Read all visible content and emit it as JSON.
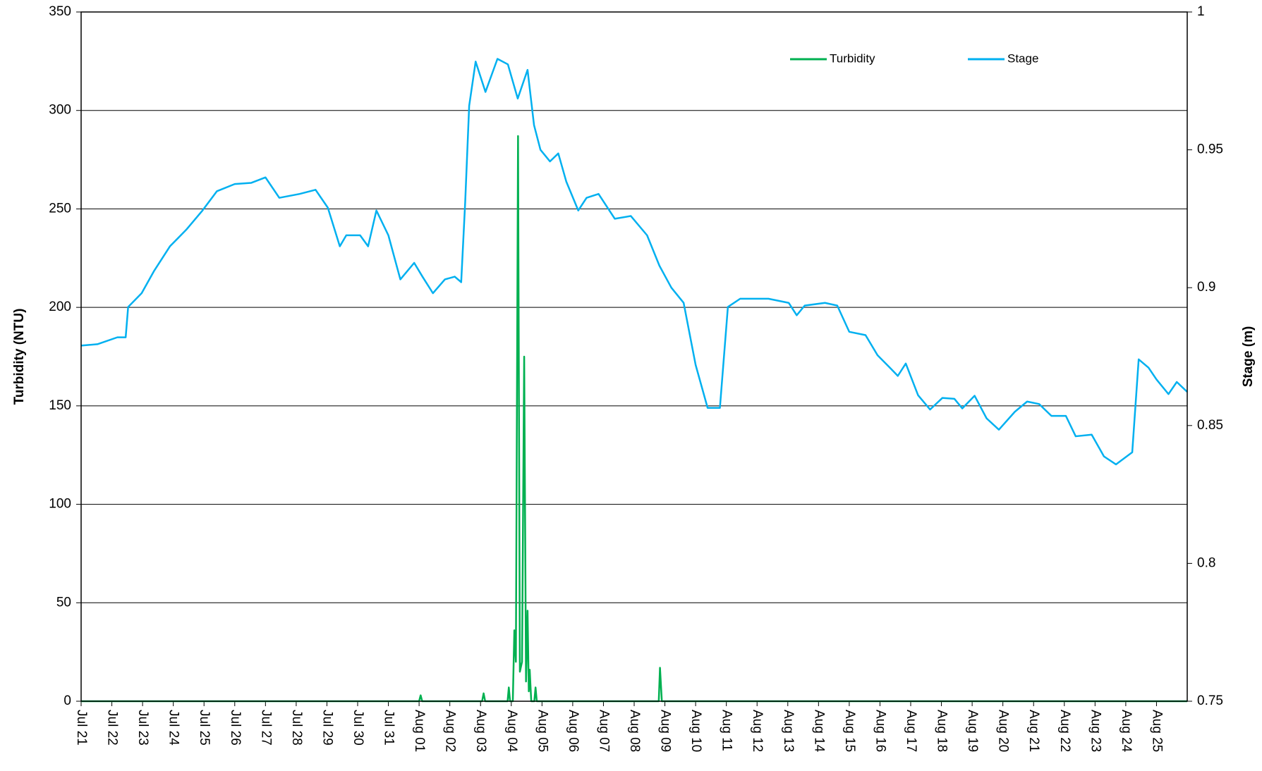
{
  "chart_data": {
    "type": "line",
    "y_label": "Turbidity (NTU)",
    "y2_label": "Stage (m)",
    "xlim": [
      0,
      36
    ],
    "xticks": [
      {
        "value": 0,
        "label": "Jul 21"
      },
      {
        "value": 1,
        "label": "Jul 22"
      },
      {
        "value": 2,
        "label": "Jul 23"
      },
      {
        "value": 3,
        "label": "Jul 24"
      },
      {
        "value": 4,
        "label": "Jul 25"
      },
      {
        "value": 5,
        "label": "Jul 26"
      },
      {
        "value": 6,
        "label": "Jul 27"
      },
      {
        "value": 7,
        "label": "Jul 28"
      },
      {
        "value": 8,
        "label": "Jul 29"
      },
      {
        "value": 9,
        "label": "Jul 30"
      },
      {
        "value": 10,
        "label": "Jul 31"
      },
      {
        "value": 11,
        "label": "Aug 01"
      },
      {
        "value": 12,
        "label": "Aug 02"
      },
      {
        "value": 13,
        "label": "Aug 03"
      },
      {
        "value": 14,
        "label": "Aug 04"
      },
      {
        "value": 15,
        "label": "Aug 05"
      },
      {
        "value": 16,
        "label": "Aug 06"
      },
      {
        "value": 17,
        "label": "Aug 07"
      },
      {
        "value": 18,
        "label": "Aug 08"
      },
      {
        "value": 19,
        "label": "Aug 09"
      },
      {
        "value": 20,
        "label": "Aug 10"
      },
      {
        "value": 21,
        "label": "Aug 11"
      },
      {
        "value": 22,
        "label": "Aug 12"
      },
      {
        "value": 23,
        "label": "Aug 13"
      },
      {
        "value": 24,
        "label": "Aug 14"
      },
      {
        "value": 25,
        "label": "Aug 15"
      },
      {
        "value": 26,
        "label": "Aug 16"
      },
      {
        "value": 27,
        "label": "Aug 17"
      },
      {
        "value": 28,
        "label": "Aug 18"
      },
      {
        "value": 29,
        "label": "Aug 19"
      },
      {
        "value": 30,
        "label": "Aug 20"
      },
      {
        "value": 31,
        "label": "Aug 21"
      },
      {
        "value": 32,
        "label": "Aug 22"
      },
      {
        "value": 33,
        "label": "Aug 23"
      },
      {
        "value": 34,
        "label": "Aug 24"
      },
      {
        "value": 35,
        "label": "Aug 25"
      }
    ],
    "ylim": [
      0,
      350
    ],
    "yticks": [
      0,
      50,
      100,
      150,
      200,
      250,
      300,
      350
    ],
    "y2lim": [
      0.75,
      1
    ],
    "y2ticks": [
      0.75,
      0.8,
      0.85,
      0.9,
      0.95,
      1
    ],
    "grid": true,
    "legend": "top-right",
    "series": [
      {
        "name": "Turbidity",
        "color": "#00b050",
        "x": [
          0,
          11.0,
          11.05,
          11.1,
          13.05,
          13.1,
          13.15,
          13.88,
          13.92,
          13.96,
          14.05,
          14.1,
          14.15,
          14.22,
          14.28,
          14.35,
          14.42,
          14.48,
          14.53,
          14.57,
          14.6,
          14.65,
          14.75,
          14.79,
          14.83,
          18.8,
          18.84,
          18.9,
          36
        ],
        "values": [
          0,
          0,
          3,
          0,
          0,
          4,
          0,
          0,
          7,
          0,
          0,
          36,
          20,
          287,
          15,
          20,
          175,
          10,
          46,
          5,
          16,
          0,
          0,
          7,
          0,
          0,
          17,
          0,
          0
        ]
      },
      {
        "name": "Stage",
        "color": "#00b0f0",
        "axis": "y2",
        "x": [
          0,
          0.53,
          1.18,
          1.45,
          1.53,
          1.97,
          2.37,
          2.89,
          3.42,
          3.95,
          4.42,
          5,
          5.53,
          6,
          6.45,
          7.11,
          7.63,
          8.03,
          8.42,
          8.63,
          9.08,
          9.34,
          9.61,
          10,
          10.39,
          10.84,
          11.11,
          11.45,
          11.84,
          12.16,
          12.37,
          12.5,
          12.63,
          12.84,
          13.16,
          13.55,
          13.89,
          14.21,
          14.53,
          14.74,
          14.95,
          15.26,
          15.53,
          15.79,
          16.18,
          16.45,
          16.84,
          17.37,
          17.89,
          18.42,
          18.82,
          19.21,
          19.61,
          20,
          20.39,
          20.79,
          21.05,
          21.45,
          22.37,
          23.03,
          23.29,
          23.55,
          24.21,
          24.61,
          25,
          25.53,
          25.92,
          26.32,
          26.58,
          26.84,
          27.24,
          27.63,
          28.03,
          28.42,
          28.68,
          29.08,
          29.47,
          29.87,
          30.39,
          30.79,
          31.18,
          31.58,
          32.05,
          32.37,
          32.89,
          33.29,
          33.68,
          34.21,
          34.42,
          34.74,
          35,
          35.39,
          35.66,
          36
        ],
        "values": [
          0.879,
          0.8795,
          0.882,
          0.882,
          0.893,
          0.898,
          0.906,
          0.915,
          0.921,
          0.928,
          0.935,
          0.9376,
          0.938,
          0.94,
          0.9326,
          0.934,
          0.9355,
          0.929,
          0.915,
          0.919,
          0.919,
          0.915,
          0.928,
          0.919,
          0.903,
          0.909,
          0.904,
          0.898,
          0.903,
          0.904,
          0.902,
          0.931,
          0.966,
          0.982,
          0.971,
          0.983,
          0.981,
          0.9686,
          0.979,
          0.959,
          0.95,
          0.9458,
          0.9487,
          0.9385,
          0.928,
          0.9326,
          0.934,
          0.925,
          0.926,
          0.919,
          0.908,
          0.9,
          0.8945,
          0.872,
          0.8564,
          0.8564,
          0.893,
          0.896,
          0.896,
          0.8945,
          0.89,
          0.8935,
          0.8945,
          0.8935,
          0.884,
          0.8828,
          0.8755,
          0.871,
          0.868,
          0.8725,
          0.861,
          0.8558,
          0.86,
          0.8597,
          0.8562,
          0.8608,
          0.8526,
          0.8485,
          0.855,
          0.8587,
          0.8578,
          0.8535,
          0.8535,
          0.8461,
          0.8467,
          0.8388,
          0.8359,
          0.8403,
          0.874,
          0.871,
          0.8667,
          0.8614,
          0.8658,
          0.8622
        ]
      }
    ]
  }
}
